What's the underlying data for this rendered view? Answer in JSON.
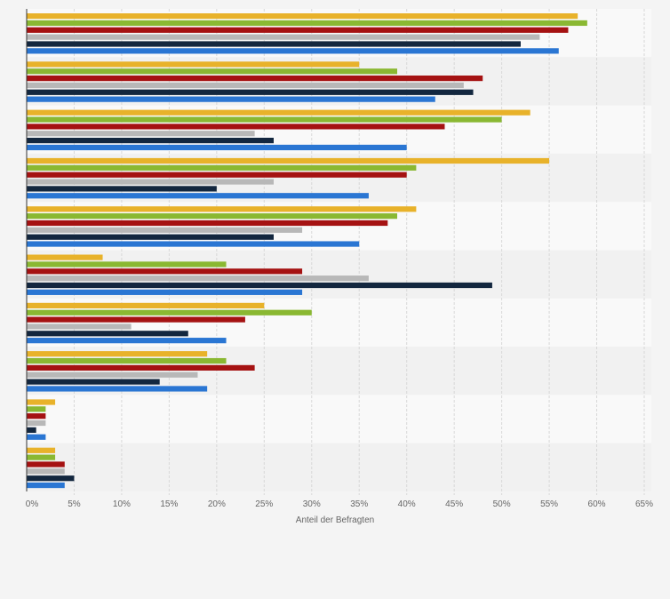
{
  "colors": {
    "background": "#f4f4f4",
    "plot_band_light": "#f9f9f9",
    "plot_band_dark": "#f1f1f1",
    "grid": "#d8d8d8",
    "axis": "#333333"
  },
  "chart_data": {
    "type": "bar",
    "orientation": "horizontal",
    "title": "",
    "xlabel": "Anteil der Befragten",
    "ylabel": "",
    "xlim": [
      0,
      65
    ],
    "x_ticks": [
      "0%",
      "5%",
      "10%",
      "15%",
      "20%",
      "25%",
      "30%",
      "35%",
      "40%",
      "45%",
      "50%",
      "55%",
      "60%",
      "65%"
    ],
    "grid": true,
    "legend": "none",
    "categories": [
      "",
      "",
      "",
      "",
      "",
      "",
      "",
      "",
      "",
      ""
    ],
    "series": [
      {
        "color": "#e8b22a",
        "values": [
          58,
          35,
          53,
          55,
          41,
          8,
          25,
          19,
          3,
          3
        ]
      },
      {
        "color": "#8ab832",
        "values": [
          59,
          39,
          50,
          41,
          39,
          21,
          30,
          21,
          2,
          3
        ]
      },
      {
        "color": "#a51212",
        "values": [
          57,
          48,
          44,
          40,
          38,
          29,
          23,
          24,
          2,
          4
        ]
      },
      {
        "color": "#b8b8b8",
        "values": [
          54,
          46,
          24,
          26,
          29,
          36,
          11,
          18,
          2,
          4
        ]
      },
      {
        "color": "#13273f",
        "values": [
          52,
          47,
          26,
          20,
          26,
          49,
          17,
          14,
          1,
          5
        ]
      },
      {
        "color": "#2a76d3",
        "values": [
          56,
          43,
          40,
          36,
          35,
          29,
          21,
          19,
          2,
          4
        ]
      }
    ]
  }
}
